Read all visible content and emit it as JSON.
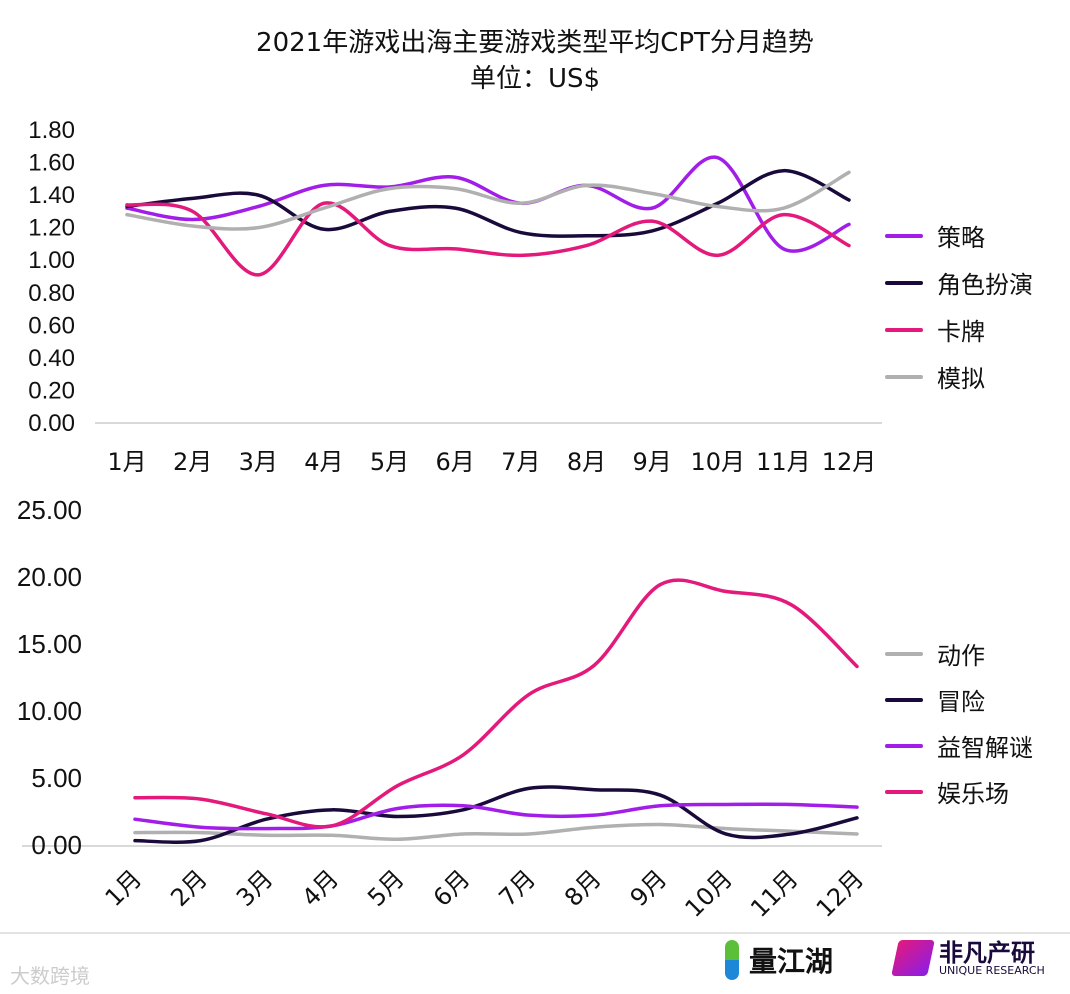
{
  "title": "2021年游戏出海主要游戏类型平均CPT分月趋势",
  "subtitle": "单位：US$",
  "chart_data": [
    {
      "type": "line",
      "ylim": [
        0,
        1.8
      ],
      "yticks": [
        "0.00",
        "0.20",
        "0.40",
        "0.60",
        "0.80",
        "1.00",
        "1.20",
        "1.40",
        "1.60",
        "1.80"
      ],
      "categories": [
        "1月",
        "2月",
        "3月",
        "4月",
        "5月",
        "6月",
        "7月",
        "8月",
        "9月",
        "10月",
        "11月",
        "12月"
      ],
      "legend": "right",
      "grid": false,
      "series": [
        {
          "name": "策略",
          "color": "#a21ee8",
          "values": [
            1.32,
            1.25,
            1.33,
            1.46,
            1.45,
            1.51,
            1.35,
            1.46,
            1.32,
            1.63,
            1.07,
            1.22
          ]
        },
        {
          "name": "角色扮演",
          "color": "#1a0a3c",
          "values": [
            1.33,
            1.38,
            1.4,
            1.19,
            1.3,
            1.32,
            1.17,
            1.15,
            1.18,
            1.35,
            1.55,
            1.37
          ]
        },
        {
          "name": "卡牌",
          "color": "#e3197b",
          "values": [
            1.34,
            1.3,
            0.91,
            1.35,
            1.09,
            1.07,
            1.03,
            1.09,
            1.24,
            1.03,
            1.28,
            1.09
          ]
        },
        {
          "name": "模拟",
          "color": "#b0b0b0",
          "values": [
            1.28,
            1.21,
            1.2,
            1.32,
            1.44,
            1.44,
            1.35,
            1.46,
            1.41,
            1.33,
            1.32,
            1.54
          ]
        }
      ]
    },
    {
      "type": "line",
      "ylim": [
        0,
        25
      ],
      "yticks": [
        "0.00",
        "5.00",
        "10.00",
        "15.00",
        "20.00",
        "25.00"
      ],
      "categories": [
        "1月",
        "2月",
        "3月",
        "4月",
        "5月",
        "6月",
        "7月",
        "8月",
        "9月",
        "10月",
        "11月",
        "12月"
      ],
      "legend": "right",
      "grid": false,
      "series": [
        {
          "name": "动作",
          "color": "#b0b0b0",
          "values": [
            1.0,
            1.0,
            0.8,
            0.8,
            0.5,
            0.9,
            0.9,
            1.4,
            1.6,
            1.3,
            1.1,
            0.9
          ]
        },
        {
          "name": "冒险",
          "color": "#1a0a3c",
          "values": [
            0.4,
            0.4,
            2.0,
            2.7,
            2.2,
            2.7,
            4.3,
            4.2,
            3.8,
            0.9,
            0.9,
            2.1
          ]
        },
        {
          "name": "益智解谜",
          "color": "#a21ee8",
          "values": [
            2.0,
            1.4,
            1.3,
            1.5,
            2.8,
            3.0,
            2.3,
            2.3,
            3.0,
            3.1,
            3.1,
            2.9
          ]
        },
        {
          "name": "娱乐场",
          "color": "#e3197b",
          "values": [
            3.6,
            3.5,
            2.4,
            1.5,
            4.5,
            6.8,
            11.3,
            13.5,
            19.5,
            19.0,
            18.0,
            13.4
          ]
        }
      ]
    }
  ],
  "footer": {
    "watermark": "大数跨境",
    "brand1": "量江湖",
    "brand2": "非凡产研",
    "brand2_sub": "UNIQUE RESEARCH"
  }
}
